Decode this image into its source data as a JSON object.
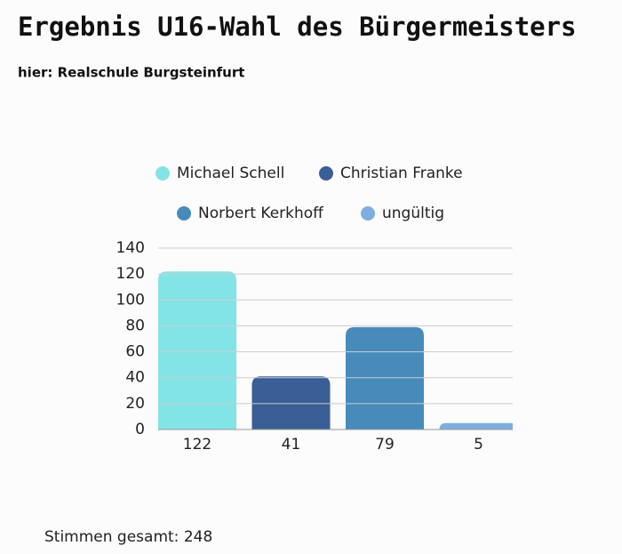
{
  "chart_data": {
    "type": "bar",
    "title": "Ergebnis U16-Wahl des Bürgermeisters",
    "subtitle": "hier: Realschule Burgsteinfurt",
    "series": [
      {
        "name": "Michael Schell",
        "color": "#83e4e6",
        "values": [
          122
        ]
      },
      {
        "name": "Christian Franke",
        "color": "#3a5e96",
        "values": [
          41
        ]
      },
      {
        "name": "Norbert Kerkhoff",
        "color": "#478bbb",
        "values": [
          79
        ]
      },
      {
        "name": "ungültig",
        "color": "#7eaee0",
        "values": [
          5
        ]
      }
    ],
    "ylim": [
      0,
      140
    ],
    "yticks": [
      0,
      20,
      40,
      60,
      80,
      100,
      120,
      140
    ],
    "grid": true,
    "footer": "Stimmen gesamt: 248"
  }
}
